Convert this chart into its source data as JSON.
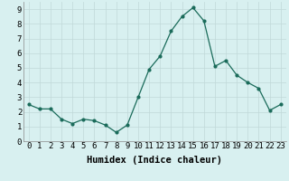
{
  "x": [
    0,
    1,
    2,
    3,
    4,
    5,
    6,
    7,
    8,
    9,
    10,
    11,
    12,
    13,
    14,
    15,
    16,
    17,
    18,
    19,
    20,
    21,
    22,
    23
  ],
  "y": [
    2.5,
    2.2,
    2.2,
    1.5,
    1.2,
    1.5,
    1.4,
    1.1,
    0.6,
    1.1,
    3.0,
    4.9,
    5.8,
    7.5,
    8.5,
    9.1,
    8.2,
    5.1,
    5.5,
    4.5,
    4.0,
    3.6,
    2.1,
    2.5
  ],
  "xlabel": "Humidex (Indice chaleur)",
  "ylim": [
    0,
    9.5
  ],
  "xlim": [
    -0.5,
    23.5
  ],
  "line_color": "#1a6b5a",
  "bg_color": "#d8f0f0",
  "grid_color": "#c0d8d8",
  "xlabel_fontsize": 7.5,
  "tick_fontsize": 6.5
}
